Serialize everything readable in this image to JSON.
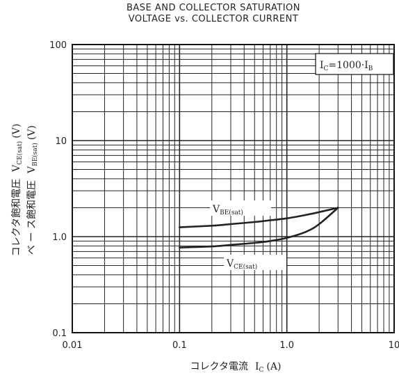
{
  "chart_data": {
    "type": "line",
    "title": "BASE AND COLLECTOR SATURATION",
    "subtitle": "VOLTAGE vs. COLLECTOR CURRENT",
    "xlabel": "コレクタ電流　I_C (A)",
    "xlabel_main": "コレクタ電流",
    "xlabel_sym": "I",
    "xlabel_sub": "C",
    "xlabel_unit": "(A)",
    "ylabel_line1": "コレクタ飽和電圧　V_CE(sat) (V)",
    "ylabel_line2": "ベ ー ス飽和電圧　V_BE(sat) (V)",
    "ylabel1_main": "コレクタ飽和電圧",
    "ylabel1_sym": "V",
    "ylabel1_sub": "CE(sat)",
    "ylabel1_unit": "(V)",
    "ylabel2_main": "ベ ー ス飽和電圧",
    "ylabel2_sym": "V",
    "ylabel2_sub": "BE(sat)",
    "ylabel2_unit": "(V)",
    "xscale": "log",
    "yscale": "log",
    "xlim": [
      0.01,
      10
    ],
    "ylim": [
      0.1,
      100
    ],
    "x_ticks": [
      "0.01",
      "0.1",
      "1.0",
      "10"
    ],
    "y_ticks": [
      "0.1",
      "1.0",
      "10",
      "100"
    ],
    "grid": true,
    "condition_label": "I_C=1000·I_B",
    "condition_main": "I",
    "condition_sub1": "C",
    "condition_mid": "=1000·I",
    "condition_sub2": "B",
    "legend": "top-right",
    "series": [
      {
        "name": "V_BE(sat)",
        "label_main": "V",
        "label_sub": "BE(sat)",
        "x": [
          0.1,
          0.2,
          0.3,
          0.5,
          0.7,
          1.0,
          1.5,
          2.0,
          3.0
        ],
        "y": [
          1.25,
          1.3,
          1.35,
          1.42,
          1.48,
          1.55,
          1.68,
          1.8,
          2.0
        ]
      },
      {
        "name": "V_CE(sat)",
        "label_main": "V",
        "label_sub": "CE(sat)",
        "x": [
          0.1,
          0.2,
          0.3,
          0.5,
          0.7,
          1.0,
          1.5,
          2.0,
          3.0
        ],
        "y": [
          0.77,
          0.79,
          0.82,
          0.86,
          0.9,
          0.97,
          1.12,
          1.35,
          2.0
        ]
      }
    ]
  }
}
